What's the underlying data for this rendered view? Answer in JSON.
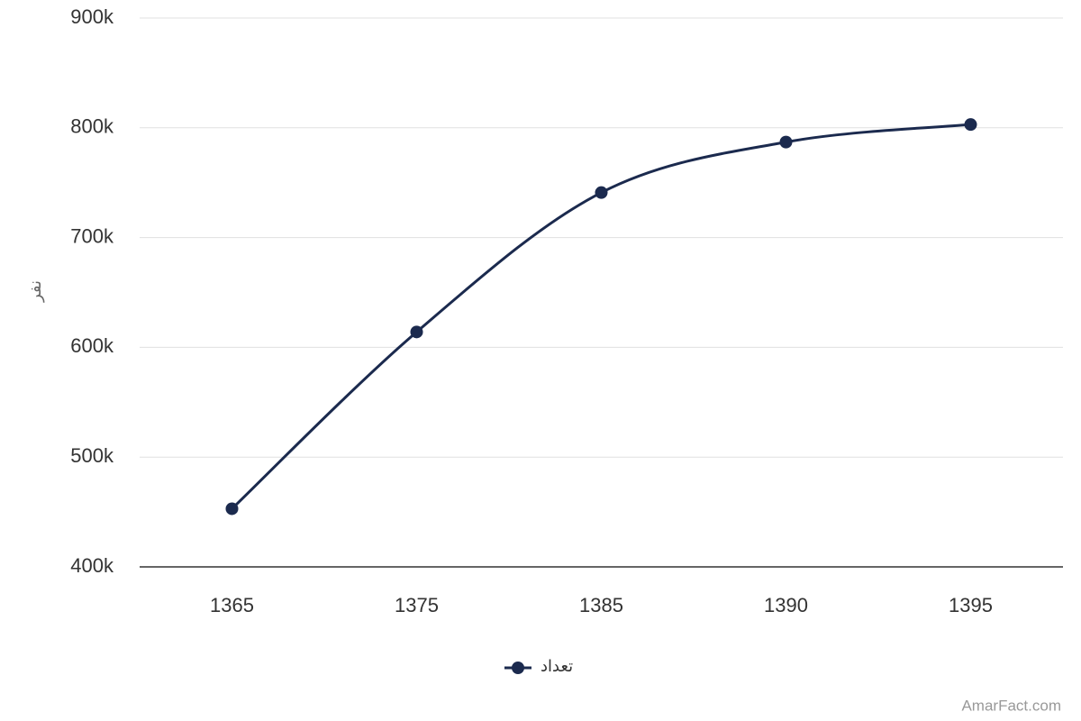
{
  "chart_data": {
    "type": "line",
    "y_axis_title": "نفر",
    "categories": [
      "1365",
      "1375",
      "1385",
      "1390",
      "1395"
    ],
    "series": [
      {
        "name": "تعداد",
        "color": "#1b2a4e",
        "values": [
          453000,
          614000,
          741000,
          787000,
          803000
        ]
      }
    ],
    "ylim": [
      400000,
      900000
    ],
    "yticks": [
      {
        "value": 400000,
        "label": "400k"
      },
      {
        "value": 500000,
        "label": "500k"
      },
      {
        "value": 600000,
        "label": "600k"
      },
      {
        "value": 700000,
        "label": "700k"
      },
      {
        "value": 800000,
        "label": "800k"
      },
      {
        "value": 900000,
        "label": "900k"
      }
    ],
    "grid": true,
    "legend": "bottom",
    "watermark": "AmarFact.com"
  }
}
